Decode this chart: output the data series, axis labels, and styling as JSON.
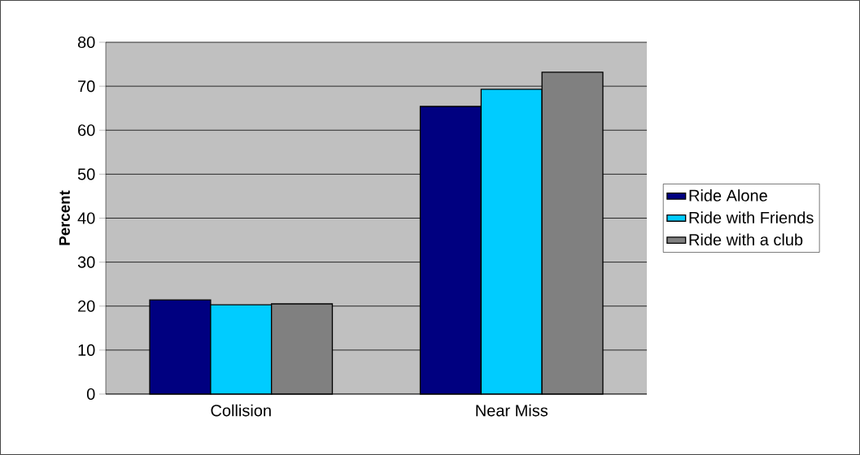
{
  "chart_data": {
    "type": "bar",
    "ylabel": "Percent",
    "categories": [
      "Collision",
      "Near Miss"
    ],
    "series": [
      {
        "name": "Ride Alone",
        "color": "#000080",
        "values": [
          21.4,
          65.4
        ]
      },
      {
        "name": "Ride with Friends",
        "color": "#00ccff",
        "values": [
          20.3,
          69.3
        ]
      },
      {
        "name": "Ride with a club",
        "color": "#808080",
        "values": [
          20.5,
          73.2
        ]
      }
    ],
    "ylim": [
      0,
      80
    ],
    "yticks": [
      0,
      10,
      20,
      30,
      40,
      50,
      60,
      70,
      80
    ],
    "grid": "y",
    "legend": "right"
  }
}
